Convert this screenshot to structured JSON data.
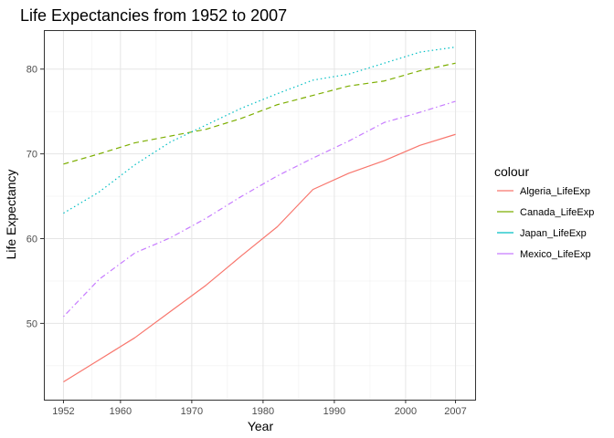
{
  "chart_data": {
    "type": "line",
    "title": "Life Expectancies from 1952 to 2007",
    "xlabel": "Year",
    "ylabel": "Life Expectancy",
    "x": [
      1952,
      1957,
      1962,
      1967,
      1972,
      1977,
      1982,
      1987,
      1992,
      1997,
      2002,
      2007
    ],
    "xlim": [
      1949.25,
      2009.75
    ],
    "ylim": [
      41.0,
      84.6
    ],
    "x_ticks": [
      1952,
      1960,
      1970,
      1980,
      1990,
      2000,
      2007
    ],
    "x_minor_ticks": [
      1956,
      1965,
      1975,
      1985,
      1995,
      2003.5
    ],
    "y_ticks": [
      50,
      60,
      70,
      80
    ],
    "y_minor_ticks": [
      45,
      55,
      65,
      75
    ],
    "grid": true,
    "legend": {
      "title": "colour",
      "position": "right"
    },
    "series": [
      {
        "name": "Algeria_LifeExp",
        "color": "#F8766D",
        "dash": "solid",
        "values": [
          43.1,
          45.7,
          48.3,
          51.4,
          54.5,
          58.0,
          61.4,
          65.8,
          67.7,
          69.2,
          71.0,
          72.3
        ]
      },
      {
        "name": "Canada_LifeExp",
        "color": "#7CAE00",
        "dash": "dashed",
        "values": [
          68.8,
          70.0,
          71.3,
          72.1,
          72.9,
          74.2,
          75.8,
          76.9,
          78.0,
          78.6,
          79.8,
          80.7
        ]
      },
      {
        "name": "Japan_LifeExp",
        "color": "#00BFC4",
        "dash": "dotted",
        "values": [
          63.0,
          65.5,
          68.7,
          71.4,
          73.4,
          75.4,
          77.1,
          78.7,
          79.4,
          80.7,
          82.0,
          82.6
        ]
      },
      {
        "name": "Mexico_LifeExp",
        "color": "#C77CFF",
        "dash": "dotdash",
        "values": [
          50.8,
          55.2,
          58.3,
          60.1,
          62.4,
          65.0,
          67.4,
          69.5,
          71.5,
          73.7,
          74.9,
          76.2
        ]
      }
    ]
  }
}
